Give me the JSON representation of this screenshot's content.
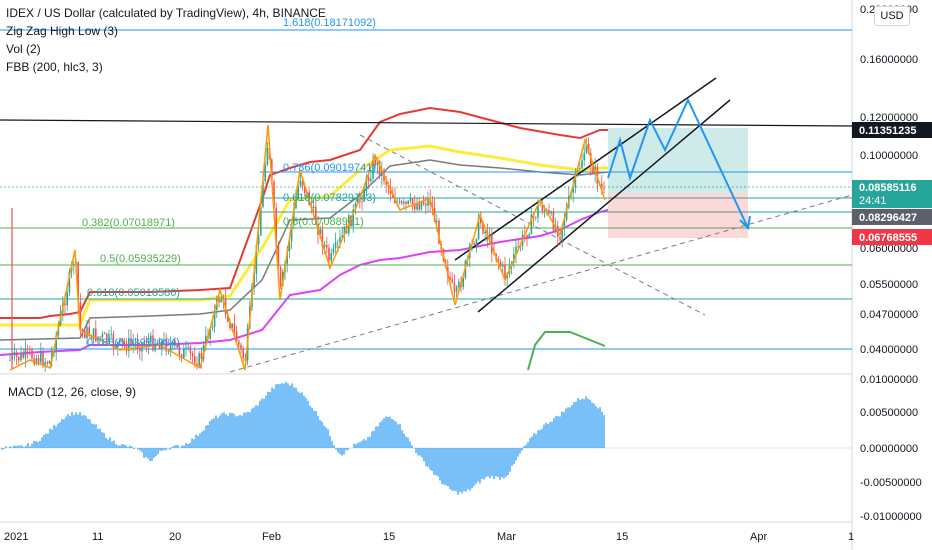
{
  "legend": {
    "title": "IDEX / US Dollar (calculated by TradingView), 4h, BINANCE",
    "indicators": [
      "Zig Zag High Low (3)",
      "Vol (2)",
      "FBB (200, hlc3, 3)"
    ]
  },
  "currency_button": "USD",
  "price_axis": {
    "ticks": [
      "0.20000000",
      "0.16000000",
      "0.12000000",
      "0.10000000",
      "0.06000000",
      "0.05500000",
      "0.04700000",
      "0.04000000"
    ],
    "price_tags": [
      {
        "label": "0.11351235",
        "color": "#131722"
      },
      {
        "label": "0.08585116",
        "color": "#26a69a"
      },
      {
        "label": "24:41",
        "color": "#26a69a"
      },
      {
        "label": "0.08296427",
        "color": "#5d606b"
      },
      {
        "label": "0.06768555",
        "color": "#f23645"
      }
    ]
  },
  "macd_axis": {
    "ticks": [
      "0.01000000",
      "0.00500000",
      "0.00000000",
      "-0.00500000",
      "-0.01000000"
    ]
  },
  "macd_legend": "MACD (12, 26, close, 9)",
  "time_axis": {
    "labels": [
      "2021",
      "11",
      "20",
      "Feb",
      "15",
      "Mar",
      "15",
      "Apr",
      "1"
    ]
  },
  "fib_labels": [
    {
      "label": "1.618(0.18171092)"
    },
    {
      "label": "0.786(0.09019741)"
    },
    {
      "label": "0.618(0.07829743)"
    },
    {
      "label": "0.5(0.07088951)"
    },
    {
      "label": "0.382(0.07018971)"
    },
    {
      "label": "0.5(0.05935229)"
    },
    {
      "label": "0.618(0.05018580)"
    },
    {
      "label": "0.786(0.03951934)"
    }
  ],
  "colors": {
    "up": "#26a69a",
    "down": "#ef5350",
    "macd": "#2196f3",
    "fib_green": "#4caf50",
    "fib_blue": "#2196f3",
    "bb_red": "#e53935",
    "bb_yellow": "#ffeb3b",
    "bb_pink": "#e040fb"
  }
}
